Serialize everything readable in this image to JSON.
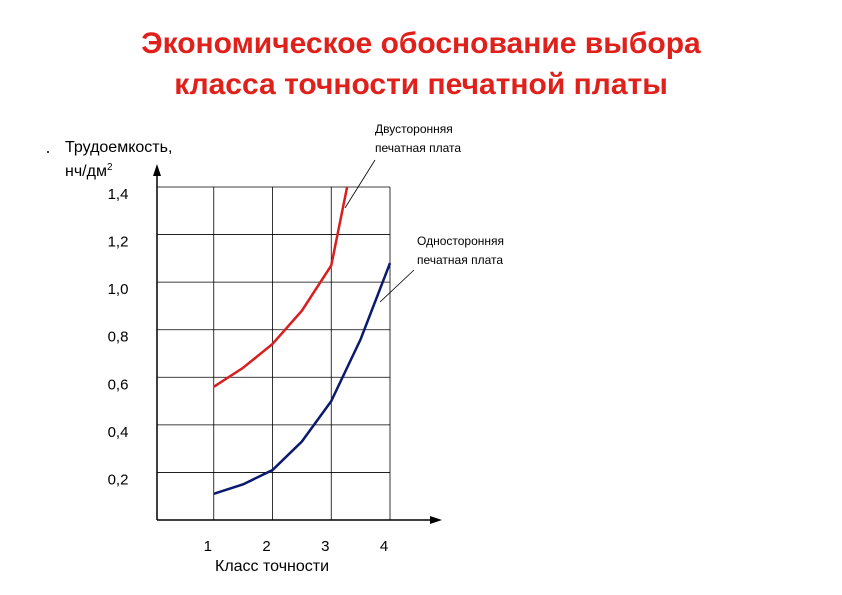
{
  "chart_data": {
    "type": "line",
    "title": [
      "Экономическое обоснование выбора",
      "класса   точности  печатной  платы"
    ],
    "y_label": {
      "text": "Трудоемкость,",
      "unit": "нч/дм",
      "sup": "2"
    },
    "x_label": "Класс   точности",
    "x": [
      1,
      1.5,
      2,
      2.5,
      3,
      3.5,
      4
    ],
    "series": [
      {
        "color": "#d81e1e",
        "x": [
          1,
          1.5,
          2,
          2.5,
          3,
          3.27
        ],
        "values": [
          0.56,
          0.64,
          0.74,
          0.88,
          1.07,
          1.4
        ]
      },
      {
        "color": "#0a1a6e",
        "x": [
          1,
          1.5,
          2,
          2.5,
          3,
          3.5,
          4
        ],
        "values": [
          0.11,
          0.15,
          0.21,
          0.33,
          0.5,
          0.76,
          1.08
        ]
      }
    ],
    "annotations": [
      {
        "lines": [
          "Двусторонняя",
          "печатная плата"
        ]
      },
      {
        "lines": [
          "Односторонняя",
          "печатная плата"
        ]
      }
    ],
    "xlim": [
      0,
      4
    ],
    "xticks": [
      1,
      2,
      3,
      4
    ],
    "ylim": [
      0,
      1.4
    ],
    "yticks": [
      {
        "value": 0.2,
        "label": "0,2"
      },
      {
        "value": 0.4,
        "label": "0,4"
      },
      {
        "value": 0.6,
        "label": "0,6"
      },
      {
        "value": 0.8,
        "label": "0,8"
      },
      {
        "value": 1.0,
        "label": "1,0"
      },
      {
        "value": 1.2,
        "label": "1,2"
      },
      {
        "value": 1.4,
        "label": "1,4"
      }
    ],
    "grid": true
  }
}
